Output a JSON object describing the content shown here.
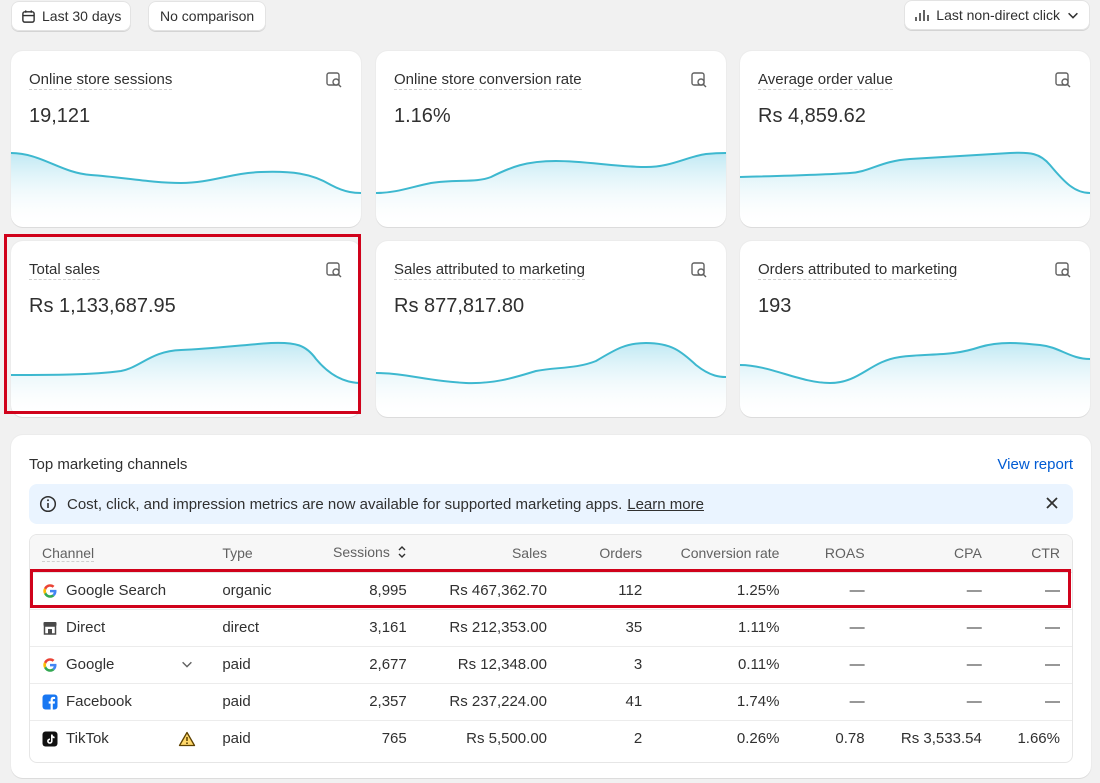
{
  "filters": {
    "date_range": "Last 30 days",
    "comparison": "No comparison",
    "attribution": "Last non-direct click"
  },
  "metrics": [
    {
      "title": "Online store sessions",
      "value": "19,121"
    },
    {
      "title": "Online store conversion rate",
      "value": "1.16%"
    },
    {
      "title": "Average order value",
      "value": "Rs 4,859.62"
    },
    {
      "title": "Total sales",
      "value": "Rs 1,133,687.95"
    },
    {
      "title": "Sales attributed to marketing",
      "value": "Rs 877,817.80"
    },
    {
      "title": "Orders attributed to marketing",
      "value": "193"
    }
  ],
  "channels_panel": {
    "title": "Top marketing channels",
    "view_report": "View report",
    "banner": {
      "text": "Cost, click, and impression metrics are now available for supported marketing apps.",
      "link": "Learn more"
    },
    "columns": [
      "Channel",
      "Type",
      "Sessions",
      "Sales",
      "Orders",
      "Conversion rate",
      "ROAS",
      "CPA",
      "CTR"
    ],
    "rows": [
      {
        "channel": "Google Search",
        "type": "organic",
        "sessions": "8,995",
        "sales": "Rs 467,362.70",
        "orders": "112",
        "conversion": "1.25%",
        "roas": "—",
        "cpa": "—",
        "ctr": "—"
      },
      {
        "channel": "Direct",
        "type": "direct",
        "sessions": "3,161",
        "sales": "Rs 212,353.00",
        "orders": "35",
        "conversion": "1.11%",
        "roas": "—",
        "cpa": "—",
        "ctr": "—"
      },
      {
        "channel": "Google",
        "type": "paid",
        "sessions": "2,677",
        "sales": "Rs 12,348.00",
        "orders": "3",
        "conversion": "0.11%",
        "roas": "—",
        "cpa": "—",
        "ctr": "—"
      },
      {
        "channel": "Facebook",
        "type": "paid",
        "sessions": "2,357",
        "sales": "Rs 237,224.00",
        "orders": "41",
        "conversion": "1.74%",
        "roas": "—",
        "cpa": "—",
        "ctr": "—"
      },
      {
        "channel": "TikTok",
        "type": "paid",
        "sessions": "765",
        "sales": "Rs 5,500.00",
        "orders": "2",
        "conversion": "0.26%",
        "roas": "0.78",
        "cpa": "Rs 3,533.54",
        "ctr": "1.66%"
      }
    ]
  },
  "colors": {
    "sparkline": "#3db8cf",
    "link": "#005bd3",
    "highlight": "#d0021b",
    "banner_bg": "#eaf4ff"
  }
}
